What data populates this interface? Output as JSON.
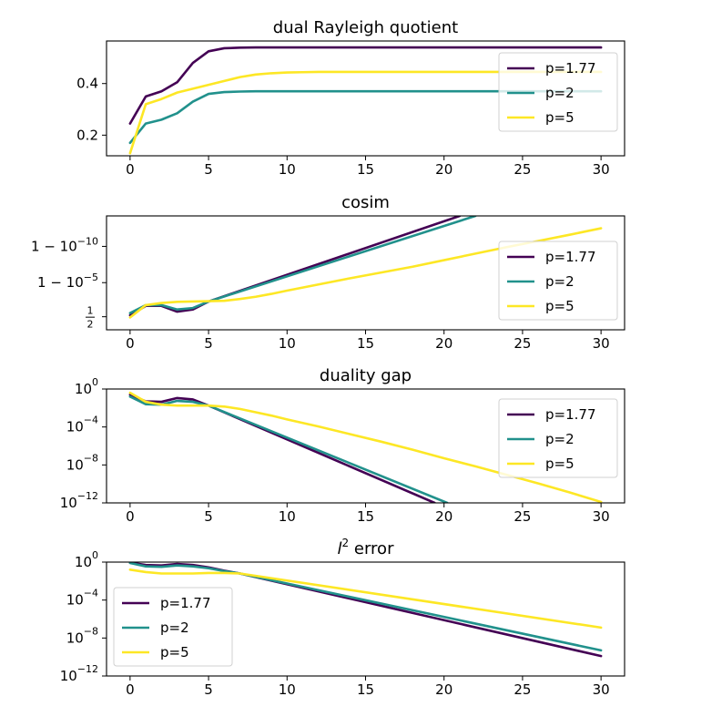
{
  "chart_data": [
    {
      "type": "line",
      "title": "dual Rayleigh quotient",
      "yscale": "linear",
      "xlim": [
        -1.5,
        31.5
      ],
      "ylim": [
        0.12,
        0.565
      ],
      "xticks": [
        0,
        5,
        10,
        15,
        20,
        25,
        30
      ],
      "xtick_labels": [
        "0",
        "5",
        "10",
        "15",
        "20",
        "25",
        "30"
      ],
      "yticks": [
        0.2,
        0.4
      ],
      "ytick_labels": [
        "0.2",
        "0.4"
      ],
      "legend": "upper-right",
      "series": [
        {
          "name": "p=1.77",
          "color": "#440154",
          "x": [
            0,
            1,
            2,
            3,
            4,
            5,
            6,
            7,
            8,
            9,
            10,
            11,
            12,
            13,
            14,
            15,
            16,
            17,
            18,
            19,
            20,
            21,
            22,
            23,
            24,
            25,
            26,
            27,
            28,
            29,
            30
          ],
          "y": [
            0.245,
            0.35,
            0.37,
            0.405,
            0.48,
            0.525,
            0.537,
            0.539,
            0.54,
            0.54,
            0.54,
            0.54,
            0.54,
            0.54,
            0.54,
            0.54,
            0.54,
            0.54,
            0.54,
            0.54,
            0.54,
            0.54,
            0.54,
            0.54,
            0.54,
            0.54,
            0.54,
            0.54,
            0.54,
            0.54,
            0.54
          ]
        },
        {
          "name": "p=2",
          "color": "#21918c",
          "x": [
            0,
            1,
            2,
            3,
            4,
            5,
            6,
            7,
            8,
            9,
            10,
            11,
            12,
            13,
            14,
            15,
            16,
            17,
            18,
            19,
            20,
            21,
            22,
            23,
            24,
            25,
            26,
            27,
            28,
            29,
            30
          ],
          "y": [
            0.17,
            0.245,
            0.26,
            0.285,
            0.33,
            0.36,
            0.367,
            0.369,
            0.37,
            0.37,
            0.37,
            0.37,
            0.37,
            0.37,
            0.37,
            0.37,
            0.37,
            0.37,
            0.37,
            0.37,
            0.37,
            0.37,
            0.37,
            0.37,
            0.37,
            0.37,
            0.37,
            0.37,
            0.37,
            0.37,
            0.37
          ]
        },
        {
          "name": "p=5",
          "color": "#fde725",
          "x": [
            0,
            1,
            2,
            3,
            4,
            5,
            6,
            7,
            8,
            9,
            10,
            11,
            12,
            13,
            14,
            15,
            16,
            17,
            18,
            19,
            20,
            21,
            22,
            23,
            24,
            25,
            26,
            27,
            28,
            29,
            30
          ],
          "y": [
            0.13,
            0.32,
            0.34,
            0.365,
            0.38,
            0.395,
            0.41,
            0.425,
            0.435,
            0.44,
            0.443,
            0.444,
            0.445,
            0.445,
            0.445,
            0.445,
            0.445,
            0.445,
            0.445,
            0.445,
            0.445,
            0.445,
            0.445,
            0.445,
            0.445,
            0.445,
            0.445,
            0.445,
            0.445,
            0.445,
            0.445
          ]
        }
      ]
    },
    {
      "type": "line",
      "title": "cosim",
      "yscale": "-log10(1-y)",
      "xlim": [
        -1.5,
        31.5
      ],
      "ylim": [
        -1.5,
        14.2
      ],
      "xticks": [
        0,
        5,
        10,
        15,
        20,
        25,
        30
      ],
      "xtick_labels": [
        "0",
        "5",
        "10",
        "15",
        "20",
        "25",
        "30"
      ],
      "yticks": [
        0.30103,
        5,
        10
      ],
      "ytick_labels": [
        "1/2",
        "1 − 10⁻⁵",
        "1 − 10⁻¹⁰"
      ],
      "legend": "center-right",
      "series": [
        {
          "name": "p=1.77",
          "color": "#440154",
          "x": [
            0,
            1,
            2,
            3,
            4,
            5,
            21
          ],
          "y": [
            0.5,
            1.8,
            1.8,
            1.0,
            1.3,
            2.4,
            14.2
          ]
        },
        {
          "name": "p=2",
          "color": "#21918c",
          "x": [
            0,
            1,
            2,
            3,
            4,
            5,
            22
          ],
          "y": [
            0.8,
            1.9,
            1.9,
            1.3,
            1.5,
            2.4,
            14.2
          ]
        },
        {
          "name": "p=5",
          "color": "#fde725",
          "x": [
            0,
            1,
            2,
            3,
            4,
            5,
            6,
            7,
            8,
            9,
            10,
            12,
            14,
            16,
            18,
            20,
            22,
            24,
            26,
            28,
            30
          ],
          "y": [
            0.2,
            1.9,
            2.2,
            2.35,
            2.4,
            2.45,
            2.5,
            2.75,
            3.05,
            3.45,
            3.9,
            4.75,
            5.6,
            6.4,
            7.2,
            8.1,
            9.0,
            9.9,
            10.75,
            11.6,
            12.5
          ]
        }
      ]
    },
    {
      "type": "line",
      "title": "duality gap",
      "yscale": "log",
      "xlim": [
        -1.5,
        31.5
      ],
      "ylim": [
        -12,
        0
      ],
      "xticks": [
        0,
        5,
        10,
        15,
        20,
        25,
        30
      ],
      "xtick_labels": [
        "0",
        "5",
        "10",
        "15",
        "20",
        "25",
        "30"
      ],
      "yticks": [
        0,
        -4,
        -8,
        -12
      ],
      "ytick_labels": [
        "10^0",
        "10^-4",
        "10^-8",
        "10^-12"
      ],
      "legend": "upper-right",
      "series": [
        {
          "name": "p=1.77",
          "color": "#440154",
          "x": [
            0,
            1,
            2,
            3,
            4,
            5,
            19.4
          ],
          "y": [
            -0.6,
            -1.3,
            -1.35,
            -0.95,
            -1.1,
            -1.75,
            -12
          ]
        },
        {
          "name": "p=2",
          "color": "#21918c",
          "x": [
            0,
            1,
            2,
            3,
            4,
            5,
            20.2
          ],
          "y": [
            -0.8,
            -1.6,
            -1.65,
            -1.25,
            -1.35,
            -1.75,
            -12
          ]
        },
        {
          "name": "p=5",
          "color": "#fde725",
          "x": [
            0,
            1,
            2,
            3,
            4,
            5,
            6,
            7,
            8,
            9,
            10,
            12,
            14,
            16,
            18,
            20,
            22,
            24,
            26,
            28,
            30
          ],
          "y": [
            -0.4,
            -1.35,
            -1.65,
            -1.75,
            -1.75,
            -1.75,
            -1.85,
            -2.1,
            -2.45,
            -2.8,
            -3.2,
            -3.95,
            -4.75,
            -5.55,
            -6.4,
            -7.3,
            -8.15,
            -9.05,
            -9.95,
            -10.9,
            -11.9
          ]
        }
      ]
    },
    {
      "type": "line",
      "title": "l² error",
      "yscale": "log",
      "xlim": [
        -1.5,
        31.5
      ],
      "ylim": [
        -12,
        0
      ],
      "xticks": [
        0,
        5,
        10,
        15,
        20,
        25,
        30
      ],
      "xtick_labels": [
        "0",
        "5",
        "10",
        "15",
        "20",
        "25",
        "30"
      ],
      "yticks": [
        0,
        -4,
        -8,
        -12
      ],
      "ytick_labels": [
        "10^0",
        "10^-4",
        "10^-8",
        "10^-12"
      ],
      "legend": "lower-left",
      "series": [
        {
          "name": "p=1.77",
          "color": "#440154",
          "x": [
            0,
            1,
            2,
            3,
            4,
            5,
            6,
            7,
            30
          ],
          "y": [
            -0.05,
            -0.3,
            -0.35,
            -0.2,
            -0.3,
            -0.55,
            -0.9,
            -1.2,
            -9.9
          ]
        },
        {
          "name": "p=2",
          "color": "#21918c",
          "x": [
            0,
            1,
            2,
            3,
            4,
            5,
            6,
            7,
            30
          ],
          "y": [
            -0.1,
            -0.45,
            -0.5,
            -0.35,
            -0.45,
            -0.65,
            -0.95,
            -1.2,
            -9.3
          ]
        },
        {
          "name": "p=5",
          "color": "#fde725",
          "x": [
            0,
            1,
            2,
            3,
            4,
            5,
            6,
            7,
            30
          ],
          "y": [
            -0.8,
            -1.05,
            -1.2,
            -1.2,
            -1.2,
            -1.15,
            -1.15,
            -1.2,
            -6.9
          ]
        }
      ]
    }
  ]
}
